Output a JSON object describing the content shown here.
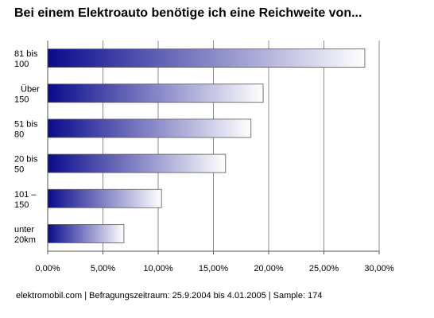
{
  "chart_data": {
    "type": "bar",
    "orientation": "horizontal",
    "title": "Bei einem Elektroauto benötige ich eine Reichweite von...",
    "categories": [
      [
        "81 bis",
        "100"
      ],
      [
        "Über",
        "150"
      ],
      [
        "51 bis",
        "80"
      ],
      [
        "20 bis",
        "50"
      ],
      [
        "101 –",
        "150"
      ],
      [
        "unter",
        "20km"
      ]
    ],
    "values": [
      28.7,
      19.5,
      18.4,
      16.1,
      10.3,
      6.9
    ],
    "value_unit": "%",
    "xlim": [
      0,
      30
    ],
    "x_ticks": [
      "0,00%",
      "5,00%",
      "10,00%",
      "15,00%",
      "20,00%",
      "25,00%",
      "30,00%"
    ],
    "grid": "vertical",
    "legend": "none",
    "bar_gradient": [
      "#0a0a8c",
      "#ffffff"
    ]
  },
  "footnote": "elektromobil.com | Befragungszeitraum: 25.9.2004 bis 4.01.2005 | Sample: 174"
}
